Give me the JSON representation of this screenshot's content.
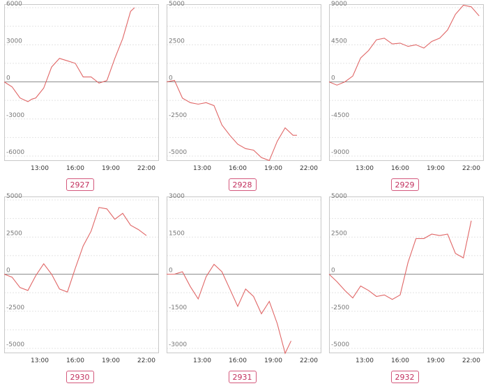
{
  "chart_data": [
    {
      "type": "line",
      "label": "2927",
      "x_ticks": [
        "13:00",
        "16:00",
        "19:00",
        "22:00"
      ],
      "xlim": [
        "10:00",
        "23:00"
      ],
      "y_ticks": [
        6000,
        3000,
        0,
        -3000,
        -6000
      ],
      "ylim": [
        -6000,
        6000
      ],
      "grid": true,
      "x": [
        "10:00",
        "10:40",
        "11:20",
        "12:00",
        "12:20",
        "12:40",
        "13:20",
        "14:00",
        "14:40",
        "15:20",
        "16:00",
        "16:40",
        "17:20",
        "18:00",
        "18:40",
        "19:20",
        "20:00",
        "20:40",
        "21:00"
      ],
      "values": [
        0,
        -400,
        -1300,
        -1600,
        -1400,
        -1300,
        -500,
        1200,
        1900,
        1700,
        1500,
        400,
        400,
        -100,
        100,
        1900,
        3500,
        5700,
        6000
      ]
    },
    {
      "type": "line",
      "label": "2928",
      "x_ticks": [
        "13:00",
        "16:00",
        "19:00",
        "22:00"
      ],
      "xlim": [
        "10:00",
        "23:00"
      ],
      "y_ticks": [
        5000,
        2500,
        0,
        -2500,
        -5000
      ],
      "ylim": [
        -5000,
        5000
      ],
      "grid": true,
      "x": [
        "10:00",
        "10:40",
        "11:20",
        "12:00",
        "12:40",
        "13:20",
        "14:00",
        "14:40",
        "15:20",
        "16:00",
        "16:40",
        "17:20",
        "18:00",
        "18:40",
        "19:20",
        "20:00",
        "20:40",
        "21:00"
      ],
      "values": [
        0,
        100,
        -1100,
        -1400,
        -1500,
        -1400,
        -1600,
        -2900,
        -3600,
        -4200,
        -4500,
        -4600,
        -5100,
        -5300,
        -4000,
        -3100,
        -3600,
        -3600
      ]
    },
    {
      "type": "line",
      "label": "2929",
      "x_ticks": [
        "13:00",
        "16:00",
        "19:00",
        "22:00"
      ],
      "xlim": [
        "10:00",
        "23:00"
      ],
      "y_ticks": [
        9000,
        4500,
        0,
        -4500,
        -9000
      ],
      "ylim": [
        -9000,
        9000
      ],
      "grid": true,
      "x": [
        "10:00",
        "10:40",
        "11:20",
        "12:00",
        "12:40",
        "13:20",
        "14:00",
        "14:40",
        "15:20",
        "16:00",
        "16:40",
        "17:20",
        "18:00",
        "18:40",
        "19:20",
        "20:00",
        "20:40",
        "21:20",
        "22:00",
        "22:40"
      ],
      "values": [
        0,
        -400,
        0,
        700,
        2900,
        3800,
        5100,
        5300,
        4600,
        4700,
        4300,
        4500,
        4100,
        4900,
        5300,
        6300,
        8200,
        9300,
        9100,
        8000
      ]
    },
    {
      "type": "line",
      "label": "2930",
      "x_ticks": [
        "13:00",
        "16:00",
        "19:00",
        "22:00"
      ],
      "xlim": [
        "10:00",
        "23:00"
      ],
      "y_ticks": [
        5000,
        2500,
        0,
        -2500,
        -5000
      ],
      "ylim": [
        -5000,
        5000
      ],
      "grid": true,
      "x": [
        "10:00",
        "10:40",
        "11:20",
        "12:00",
        "12:40",
        "13:20",
        "14:00",
        "14:40",
        "15:20",
        "16:00",
        "16:40",
        "17:20",
        "18:00",
        "18:40",
        "19:20",
        "20:00",
        "20:40",
        "21:20",
        "22:00"
      ],
      "values": [
        0,
        -200,
        -900,
        -1100,
        -100,
        700,
        0,
        -1000,
        -1200,
        400,
        1900,
        2900,
        4500,
        4400,
        3700,
        4100,
        3300,
        3000,
        2600
      ]
    },
    {
      "type": "line",
      "label": "2931",
      "x_ticks": [
        "13:00",
        "16:00",
        "19:00",
        "22:00"
      ],
      "xlim": [
        "10:00",
        "23:00"
      ],
      "y_ticks": [
        3000,
        1500,
        0,
        -1500,
        -3000
      ],
      "ylim": [
        -3000,
        3000
      ],
      "grid": true,
      "x": [
        "10:00",
        "10:40",
        "11:20",
        "12:00",
        "12:40",
        "13:20",
        "14:00",
        "14:40",
        "15:20",
        "16:00",
        "16:40",
        "17:20",
        "18:00",
        "18:40",
        "19:20",
        "20:00",
        "20:30"
      ],
      "values": [
        0,
        0,
        100,
        -500,
        -1000,
        -100,
        400,
        100,
        -600,
        -1300,
        -600,
        -900,
        -1600,
        -1100,
        -2000,
        -3200,
        -2700
      ]
    },
    {
      "type": "line",
      "label": "2932",
      "x_ticks": [
        "13:00",
        "16:00",
        "19:00",
        "22:00"
      ],
      "xlim": [
        "10:00",
        "23:00"
      ],
      "y_ticks": [
        5000,
        2500,
        0,
        -2500,
        -5000
      ],
      "ylim": [
        -5000,
        5000
      ],
      "grid": true,
      "x": [
        "10:00",
        "10:40",
        "11:20",
        "12:00",
        "12:40",
        "13:20",
        "14:00",
        "14:40",
        "15:20",
        "16:00",
        "16:40",
        "17:20",
        "18:00",
        "18:40",
        "19:20",
        "20:00",
        "20:40",
        "21:20",
        "22:00"
      ],
      "values": [
        0,
        -500,
        -1100,
        -1600,
        -800,
        -1100,
        -1500,
        -1400,
        -1700,
        -1400,
        800,
        2400,
        2400,
        2700,
        2600,
        2700,
        1400,
        1100,
        3600
      ]
    }
  ]
}
